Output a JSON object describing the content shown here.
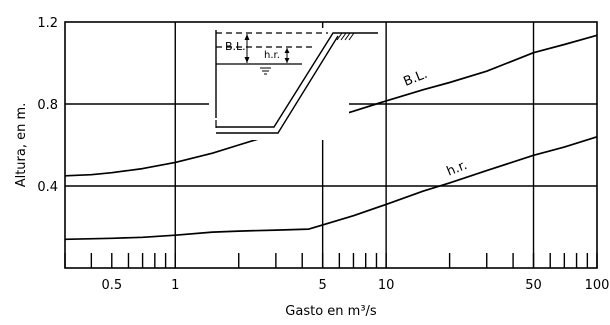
{
  "chart_data": {
    "type": "line",
    "title": "",
    "xlabel": "Gasto en m³/s",
    "ylabel": "Altura, en m.",
    "x_scale": "log",
    "xlim": [
      0.3,
      100
    ],
    "ylim": [
      0.0,
      1.2
    ],
    "grid": true,
    "x_grid_lines": [
      1,
      5,
      10,
      50
    ],
    "y_grid_lines": [
      0.4,
      0.8
    ],
    "x_tick_labels": [
      {
        "value": 0.5,
        "label": "0.5"
      },
      {
        "value": 1,
        "label": "1"
      },
      {
        "value": 5,
        "label": "5"
      },
      {
        "value": 10,
        "label": "10"
      },
      {
        "value": 50,
        "label": "50"
      },
      {
        "value": 100,
        "label": "100"
      }
    ],
    "y_tick_labels": [
      {
        "value": 0.4,
        "label": "0.4"
      },
      {
        "value": 0.8,
        "label": "0.8"
      },
      {
        "value": 1.2,
        "label": "1.2"
      }
    ],
    "minor_x_ticks": [
      0.3,
      0.4,
      0.5,
      0.6,
      0.7,
      0.8,
      0.9,
      1,
      2,
      3,
      4,
      5,
      6,
      7,
      8,
      9,
      10,
      20,
      30,
      40,
      50,
      60,
      70,
      80,
      90,
      100
    ],
    "series": [
      {
        "name": "B.L.",
        "x": [
          0.3,
          0.4,
          0.5,
          0.7,
          1,
          1.5,
          2,
          3,
          4,
          5,
          7,
          10,
          15,
          20,
          30,
          50,
          70,
          100
        ],
        "y": [
          0.45,
          0.455,
          0.465,
          0.485,
          0.515,
          0.56,
          0.6,
          0.655,
          0.69,
          0.72,
          0.765,
          0.815,
          0.87,
          0.905,
          0.96,
          1.05,
          1.09,
          1.135
        ]
      },
      {
        "name": "h.r.",
        "x": [
          0.3,
          0.5,
          0.7,
          1,
          1.5,
          2,
          3,
          4.3,
          5,
          7,
          10,
          15,
          20,
          30,
          50,
          70,
          100
        ],
        "y": [
          0.14,
          0.145,
          0.15,
          0.16,
          0.175,
          0.18,
          0.185,
          0.19,
          0.21,
          0.255,
          0.31,
          0.375,
          0.415,
          0.475,
          0.55,
          0.59,
          0.64
        ]
      }
    ],
    "inset": {
      "labels": [
        "B.L.",
        "h.r."
      ]
    }
  }
}
